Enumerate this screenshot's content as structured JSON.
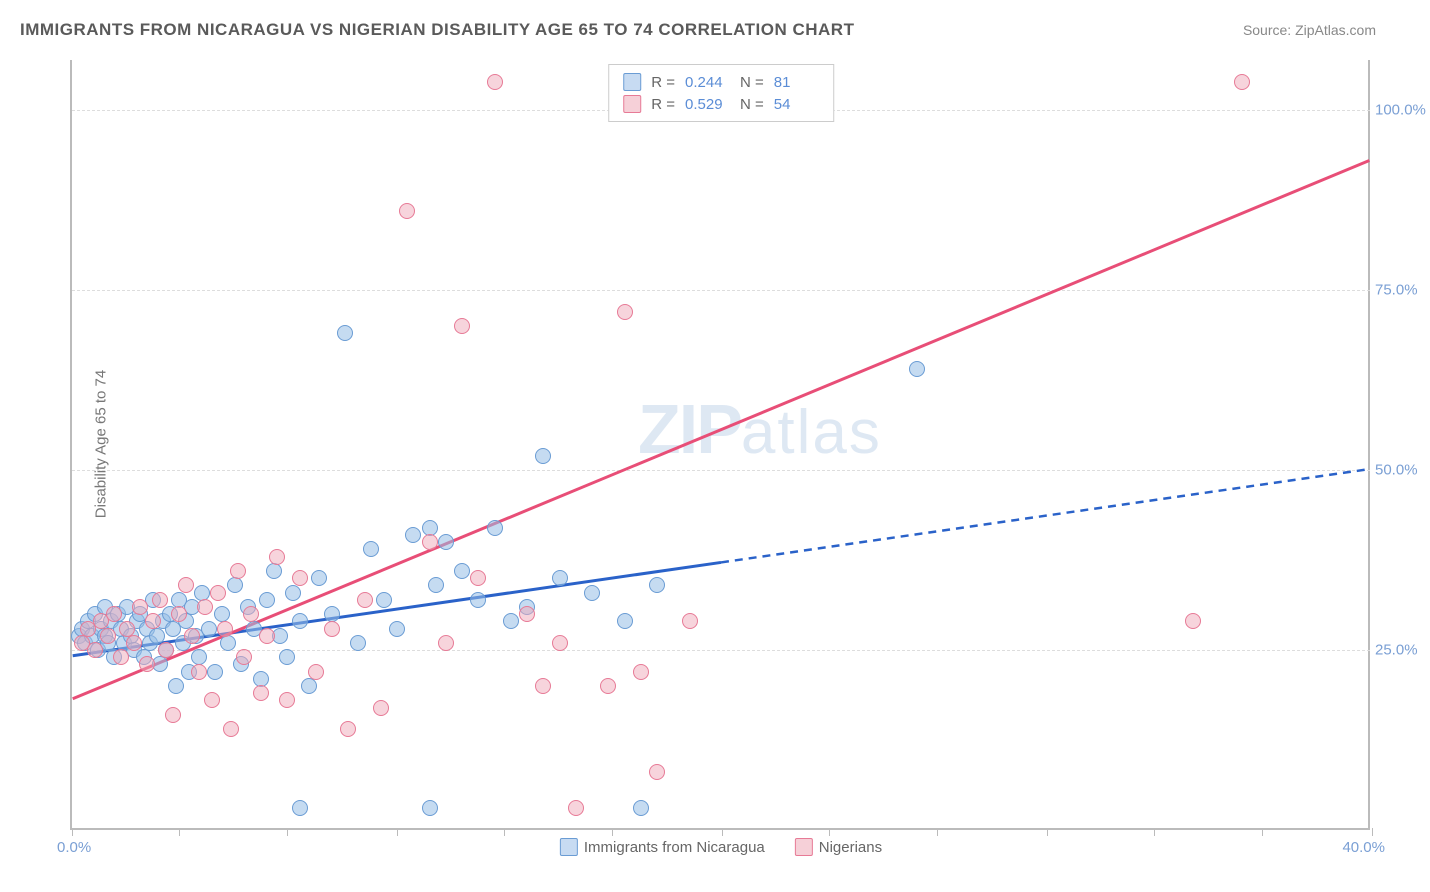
{
  "title": "IMMIGRANTS FROM NICARAGUA VS NIGERIAN DISABILITY AGE 65 TO 74 CORRELATION CHART",
  "source": "Source: ZipAtlas.com",
  "watermark_zip": "ZIP",
  "watermark_atlas": "atlas",
  "chart": {
    "type": "scatter",
    "y_axis_title": "Disability Age 65 to 74",
    "xlim": [
      0,
      40
    ],
    "ylim": [
      0,
      107
    ],
    "x_ticks": [
      0,
      3.3,
      6.6,
      10,
      13.3,
      16.6,
      20,
      23.3,
      26.6,
      30,
      33.3,
      36.6,
      40
    ],
    "y_gridlines": [
      25,
      50,
      75,
      100
    ],
    "y_tick_labels": [
      "25.0%",
      "50.0%",
      "75.0%",
      "100.0%"
    ],
    "x_origin_label": "0.0%",
    "x_max_label": "40.0%",
    "background_color": "#ffffff",
    "grid_color": "#dddddd",
    "axis_color": "#bbbbbb",
    "tick_label_color": "#7a9fd4",
    "axis_title_color": "#777777"
  },
  "legend": {
    "items": [
      {
        "label": "Immigrants from Nicaragua",
        "fill": "#c7dbf2",
        "stroke": "#6a9cd4"
      },
      {
        "label": "Nigerians",
        "fill": "#f6d0d8",
        "stroke": "#e77a96"
      }
    ]
  },
  "stats": {
    "rows": [
      {
        "swatch_fill": "#c7dbf2",
        "swatch_stroke": "#6a9cd4",
        "r_label": "R =",
        "r": "0.244",
        "n_label": "N =",
        "n": "81"
      },
      {
        "swatch_fill": "#f6d0d8",
        "swatch_stroke": "#e77a96",
        "r_label": "R =",
        "r": "0.529",
        "n_label": "N =",
        "n": "54"
      }
    ]
  },
  "series": [
    {
      "name": "nicaragua",
      "point_fill": "rgba(150,190,230,0.55)",
      "point_stroke": "#6a9cd4",
      "trend_color": "#2a62c9",
      "trend_solid_end_x": 20,
      "trend": {
        "x1": 0,
        "y1": 24,
        "x2": 40,
        "y2": 50
      },
      "points": [
        [
          0.2,
          27
        ],
        [
          0.3,
          28
        ],
        [
          0.4,
          26
        ],
        [
          0.5,
          29
        ],
        [
          0.6,
          27
        ],
        [
          0.7,
          30
        ],
        [
          0.8,
          25
        ],
        [
          0.9,
          28
        ],
        [
          1.0,
          27
        ],
        [
          1.0,
          31
        ],
        [
          1.1,
          26
        ],
        [
          1.2,
          29
        ],
        [
          1.3,
          24
        ],
        [
          1.4,
          30
        ],
        [
          1.5,
          28
        ],
        [
          1.6,
          26
        ],
        [
          1.7,
          31
        ],
        [
          1.8,
          27
        ],
        [
          1.9,
          25
        ],
        [
          2.0,
          29
        ],
        [
          2.1,
          30
        ],
        [
          2.2,
          24
        ],
        [
          2.3,
          28
        ],
        [
          2.4,
          26
        ],
        [
          2.5,
          32
        ],
        [
          2.6,
          27
        ],
        [
          2.7,
          23
        ],
        [
          2.8,
          29
        ],
        [
          2.9,
          25
        ],
        [
          3.0,
          30
        ],
        [
          3.1,
          28
        ],
        [
          3.2,
          20
        ],
        [
          3.3,
          32
        ],
        [
          3.4,
          26
        ],
        [
          3.5,
          29
        ],
        [
          3.6,
          22
        ],
        [
          3.7,
          31
        ],
        [
          3.8,
          27
        ],
        [
          3.9,
          24
        ],
        [
          4.0,
          33
        ],
        [
          4.2,
          28
        ],
        [
          4.4,
          22
        ],
        [
          4.6,
          30
        ],
        [
          4.8,
          26
        ],
        [
          5.0,
          34
        ],
        [
          5.2,
          23
        ],
        [
          5.4,
          31
        ],
        [
          5.6,
          28
        ],
        [
          5.8,
          21
        ],
        [
          6.0,
          32
        ],
        [
          6.2,
          36
        ],
        [
          6.4,
          27
        ],
        [
          6.6,
          24
        ],
        [
          6.8,
          33
        ],
        [
          7.0,
          29
        ],
        [
          7.3,
          20
        ],
        [
          7.6,
          35
        ],
        [
          8.0,
          30
        ],
        [
          8.4,
          69
        ],
        [
          8.8,
          26
        ],
        [
          9.2,
          39
        ],
        [
          9.6,
          32
        ],
        [
          10.0,
          28
        ],
        [
          10.5,
          41
        ],
        [
          11.0,
          42
        ],
        [
          11.2,
          34
        ],
        [
          11.5,
          40
        ],
        [
          12.0,
          36
        ],
        [
          12.5,
          32
        ],
        [
          13.0,
          42
        ],
        [
          13.5,
          29
        ],
        [
          14.0,
          31
        ],
        [
          14.5,
          52
        ],
        [
          15.0,
          35
        ],
        [
          16.0,
          33
        ],
        [
          17.0,
          29
        ],
        [
          17.5,
          3
        ],
        [
          18.0,
          34
        ],
        [
          11.0,
          3
        ],
        [
          7.0,
          3
        ],
        [
          26.0,
          64
        ]
      ]
    },
    {
      "name": "nigerians",
      "point_fill": "rgba(240,170,185,0.5)",
      "point_stroke": "#e77a96",
      "trend_color": "#e84e77",
      "trend_solid_end_x": 40,
      "trend": {
        "x1": 0,
        "y1": 18,
        "x2": 40,
        "y2": 93
      },
      "points": [
        [
          0.3,
          26
        ],
        [
          0.5,
          28
        ],
        [
          0.7,
          25
        ],
        [
          0.9,
          29
        ],
        [
          1.1,
          27
        ],
        [
          1.3,
          30
        ],
        [
          1.5,
          24
        ],
        [
          1.7,
          28
        ],
        [
          1.9,
          26
        ],
        [
          2.1,
          31
        ],
        [
          2.3,
          23
        ],
        [
          2.5,
          29
        ],
        [
          2.7,
          32
        ],
        [
          2.9,
          25
        ],
        [
          3.1,
          16
        ],
        [
          3.3,
          30
        ],
        [
          3.5,
          34
        ],
        [
          3.7,
          27
        ],
        [
          3.9,
          22
        ],
        [
          4.1,
          31
        ],
        [
          4.3,
          18
        ],
        [
          4.5,
          33
        ],
        [
          4.7,
          28
        ],
        [
          4.9,
          14
        ],
        [
          5.1,
          36
        ],
        [
          5.3,
          24
        ],
        [
          5.5,
          30
        ],
        [
          5.8,
          19
        ],
        [
          6.0,
          27
        ],
        [
          6.3,
          38
        ],
        [
          6.6,
          18
        ],
        [
          7.0,
          35
        ],
        [
          7.5,
          22
        ],
        [
          8.0,
          28
        ],
        [
          8.5,
          14
        ],
        [
          9.0,
          32
        ],
        [
          9.5,
          17
        ],
        [
          10.3,
          86
        ],
        [
          11.0,
          40
        ],
        [
          11.5,
          26
        ],
        [
          12.0,
          70
        ],
        [
          12.5,
          35
        ],
        [
          13.0,
          104
        ],
        [
          14.0,
          30
        ],
        [
          14.5,
          20
        ],
        [
          15.0,
          26
        ],
        [
          15.5,
          3
        ],
        [
          16.5,
          20
        ],
        [
          17.0,
          72
        ],
        [
          17.5,
          22
        ],
        [
          18.0,
          8
        ],
        [
          36.0,
          104
        ],
        [
          34.5,
          29
        ],
        [
          19.0,
          29
        ]
      ]
    }
  ]
}
